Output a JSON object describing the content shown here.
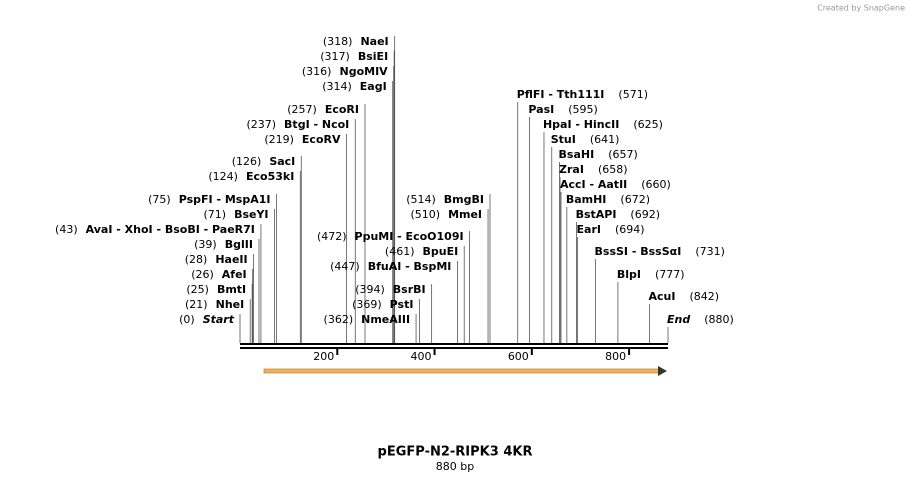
{
  "credit": "Created by SnapGene",
  "map": {
    "title": "pEGFP-N2-RIPK3 4KR",
    "subtitle": "880 bp",
    "length": 880,
    "ticks": [
      200,
      400,
      600,
      800
    ],
    "enzymes": [
      {
        "name": "NaeI",
        "position": {
          "value": 318,
          "label": "(318)"
        }
      },
      {
        "name": "BsiEI",
        "position": {
          "value": 317,
          "label": "(317)"
        }
      },
      {
        "name": "NgoMIV",
        "position": {
          "value": 316,
          "label": "(316)"
        }
      },
      {
        "name": "EagI",
        "position": {
          "value": 314,
          "label": "(314)"
        }
      },
      {
        "name": "EcoRI",
        "position": {
          "value": 257,
          "label": "(257)"
        }
      },
      {
        "name": "BtgI - NcoI",
        "position": {
          "value": 237,
          "label": "(237)"
        }
      },
      {
        "name": "EcoRV",
        "position": {
          "value": 219,
          "label": "(219)"
        }
      },
      {
        "name": "SacI",
        "position": {
          "value": 126,
          "label": "(126)"
        }
      },
      {
        "name": "Eco53kI",
        "position": {
          "value": 124,
          "label": "(124)"
        }
      },
      {
        "name": "PspFI - MspA1I",
        "position": {
          "value": 75,
          "label": "(75)"
        }
      },
      {
        "name": "BseYI",
        "position": {
          "value": 71,
          "label": "(71)"
        }
      },
      {
        "name": "AvaI - XhoI - BsoBI - PaeR7I",
        "position": {
          "value": 43,
          "label": "(43)"
        }
      },
      {
        "name": "BglII",
        "position": {
          "value": 39,
          "label": "(39)"
        }
      },
      {
        "name": "HaeII",
        "position": {
          "value": 28,
          "label": "(28)"
        }
      },
      {
        "name": "AfeI",
        "position": {
          "value": 26,
          "label": "(26)"
        }
      },
      {
        "name": "BmtI",
        "position": {
          "value": 25,
          "label": "(25)"
        }
      },
      {
        "name": "NheI",
        "position": {
          "value": 21,
          "label": "(21)"
        }
      },
      {
        "name": "Start",
        "position": {
          "value": 0,
          "label": "(0)"
        }
      },
      {
        "name": "BmgBI",
        "position": {
          "value": 514,
          "label": "(514)"
        }
      },
      {
        "name": "MmeI",
        "position": {
          "value": 510,
          "label": "(510)"
        }
      },
      {
        "name": "PpuMI - EcoO109I",
        "position": {
          "value": 472,
          "label": "(472)"
        }
      },
      {
        "name": "BpuEI",
        "position": {
          "value": 461,
          "label": "(461)"
        }
      },
      {
        "name": "BfuAI - BspMI",
        "position": {
          "value": 447,
          "label": "(447)"
        }
      },
      {
        "name": "BsrBI",
        "position": {
          "value": 394,
          "label": "(394)"
        }
      },
      {
        "name": "PstI",
        "position": {
          "value": 369,
          "label": "(369)"
        }
      },
      {
        "name": "NmeAIII",
        "position": {
          "value": 362,
          "label": "(362)"
        }
      },
      {
        "name": "PflFI - Tth111I",
        "position": {
          "value": 571,
          "label": "(571)"
        }
      },
      {
        "name": "PasI",
        "position": {
          "value": 595,
          "label": "(595)"
        }
      },
      {
        "name": "HpaI - HincII",
        "position": {
          "value": 625,
          "label": "(625)"
        }
      },
      {
        "name": "StuI",
        "position": {
          "value": 641,
          "label": "(641)"
        }
      },
      {
        "name": "BsaHI",
        "position": {
          "value": 657,
          "label": "(657)"
        }
      },
      {
        "name": "ZraI",
        "position": {
          "value": 658,
          "label": "(658)"
        }
      },
      {
        "name": "AccI - AatII",
        "position": {
          "value": 660,
          "label": "(660)"
        }
      },
      {
        "name": "BamHI",
        "position": {
          "value": 672,
          "label": "(672)"
        }
      },
      {
        "name": "BstAPI",
        "position": {
          "value": 692,
          "label": "(692)"
        }
      },
      {
        "name": "EarI",
        "position": {
          "value": 694,
          "label": "(694)"
        }
      },
      {
        "name": "BssSI - BssSαI",
        "position": {
          "value": 731,
          "label": "(731)"
        }
      },
      {
        "name": "BlpI",
        "position": {
          "value": 777,
          "label": "(777)"
        }
      },
      {
        "name": "AcuI",
        "position": {
          "value": 842,
          "label": "(842)"
        }
      },
      {
        "name": "End",
        "position": {
          "value": 880,
          "label": "(880)"
        }
      }
    ]
  }
}
